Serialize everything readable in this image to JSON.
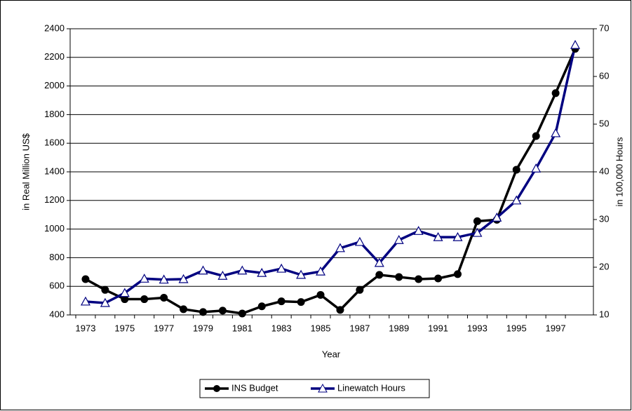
{
  "chart_data": {
    "type": "line",
    "x_label": "Year",
    "y_label": "in Real Million US$",
    "y2_label": "in 100,000 Hours",
    "categories": [
      "1973",
      null,
      "1975",
      null,
      "1977",
      null,
      "1979",
      null,
      "1981",
      null,
      "1983",
      null,
      "1985",
      null,
      "1987",
      null,
      "1989",
      null,
      "1991",
      null,
      "1993",
      null,
      "1995",
      null,
      "1997",
      null
    ],
    "series": [
      {
        "name": "INS Budget",
        "color": "#000000",
        "marker": "circle",
        "values": [
          650,
          575,
          510,
          510,
          520,
          440,
          420,
          430,
          410,
          460,
          495,
          490,
          540,
          435,
          575,
          680,
          665,
          650,
          655,
          685,
          1055,
          1065,
          1415,
          1650,
          1950,
          2260
        ]
      },
      {
        "name": "Linewatch Hours",
        "color": "#000080",
        "marker": "triangle",
        "axis": "y2",
        "values": [
          12.8,
          12.5,
          14.6,
          17.6,
          17.4,
          17.5,
          19.3,
          18.2,
          19.3,
          18.8,
          19.7,
          18.4,
          19.1,
          24.0,
          25.3,
          20.9,
          25.7,
          27.6,
          26.3,
          26.3,
          27.2,
          30.4,
          34.0,
          40.7,
          48.1,
          66.6
        ]
      }
    ],
    "ylim": [
      400,
      2400
    ],
    "yticks": [
      400,
      600,
      800,
      1000,
      1200,
      1400,
      1600,
      1800,
      2000,
      2200,
      2400
    ],
    "y2lim": [
      10,
      70
    ],
    "y2ticks": [
      10,
      20,
      30,
      40,
      50,
      60,
      70
    ],
    "grid": true,
    "legend": "bottom"
  }
}
